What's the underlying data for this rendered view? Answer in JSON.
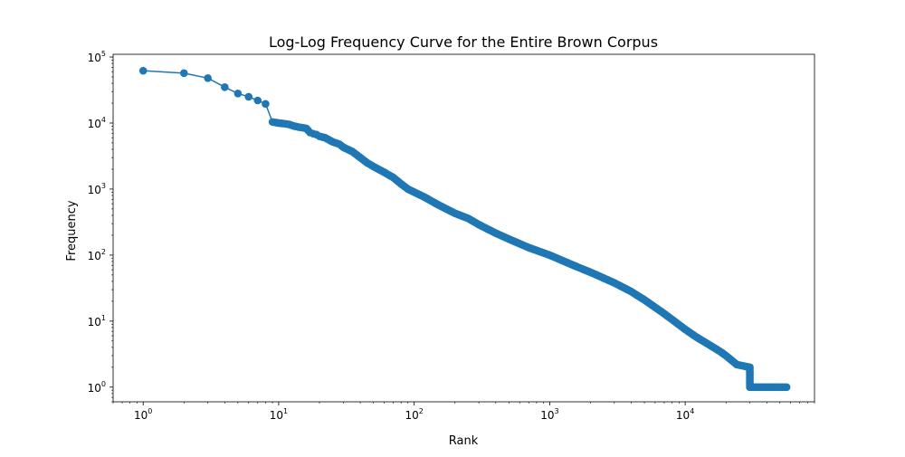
{
  "chart_data": {
    "type": "line",
    "title": "Log-Log Frequency Curve for the Entire Brown Corpus",
    "xlabel": "Rank",
    "ylabel": "Frequency",
    "xscale": "log",
    "yscale": "log",
    "xlim": [
      0.6,
      90000
    ],
    "ylim": [
      0.6,
      110000
    ],
    "grid": false,
    "marker": "circle",
    "color": "#1f77b4",
    "xticks": [
      {
        "value": 1,
        "base": "10",
        "exp": "0"
      },
      {
        "value": 10,
        "base": "10",
        "exp": "1"
      },
      {
        "value": 100,
        "base": "10",
        "exp": "2"
      },
      {
        "value": 1000,
        "base": "10",
        "exp": "3"
      },
      {
        "value": 10000,
        "base": "10",
        "exp": "4"
      }
    ],
    "yticks": [
      {
        "value": 1,
        "base": "10",
        "exp": "0"
      },
      {
        "value": 10,
        "base": "10",
        "exp": "1"
      },
      {
        "value": 100,
        "base": "10",
        "exp": "2"
      },
      {
        "value": 1000,
        "base": "10",
        "exp": "3"
      },
      {
        "value": 10000,
        "base": "10",
        "exp": "4"
      },
      {
        "value": 100000,
        "base": "10",
        "exp": "5"
      }
    ],
    "series": [
      {
        "x": [
          1,
          2,
          3,
          4,
          5,
          6,
          7,
          8,
          9,
          10,
          11,
          12,
          13,
          14,
          15,
          16,
          17,
          18,
          19,
          20,
          22,
          25,
          28,
          30,
          35,
          40,
          45,
          50,
          60,
          70,
          80,
          90,
          100,
          120,
          150,
          200,
          250,
          300,
          400,
          500,
          700,
          1000,
          1500,
          2000,
          3000,
          4000,
          5000,
          7000,
          10000,
          12000,
          15000,
          18000,
          20000,
          24000,
          30000,
          30001,
          40000,
          50000,
          56000
        ],
        "y": [
          62000,
          57000,
          48000,
          35000,
          28000,
          25000,
          22000,
          19500,
          10400,
          10000,
          9800,
          9500,
          9000,
          8700,
          8500,
          8300,
          7200,
          6900,
          6700,
          6300,
          6000,
          5200,
          4800,
          4300,
          3700,
          3000,
          2500,
          2200,
          1800,
          1500,
          1200,
          1000,
          900,
          750,
          580,
          430,
          360,
          290,
          215,
          175,
          130,
          100,
          70,
          55,
          38,
          28,
          21,
          13,
          7.5,
          5.8,
          4.4,
          3.5,
          3,
          2.2,
          2,
          1,
          1,
          1,
          1
        ]
      }
    ]
  }
}
